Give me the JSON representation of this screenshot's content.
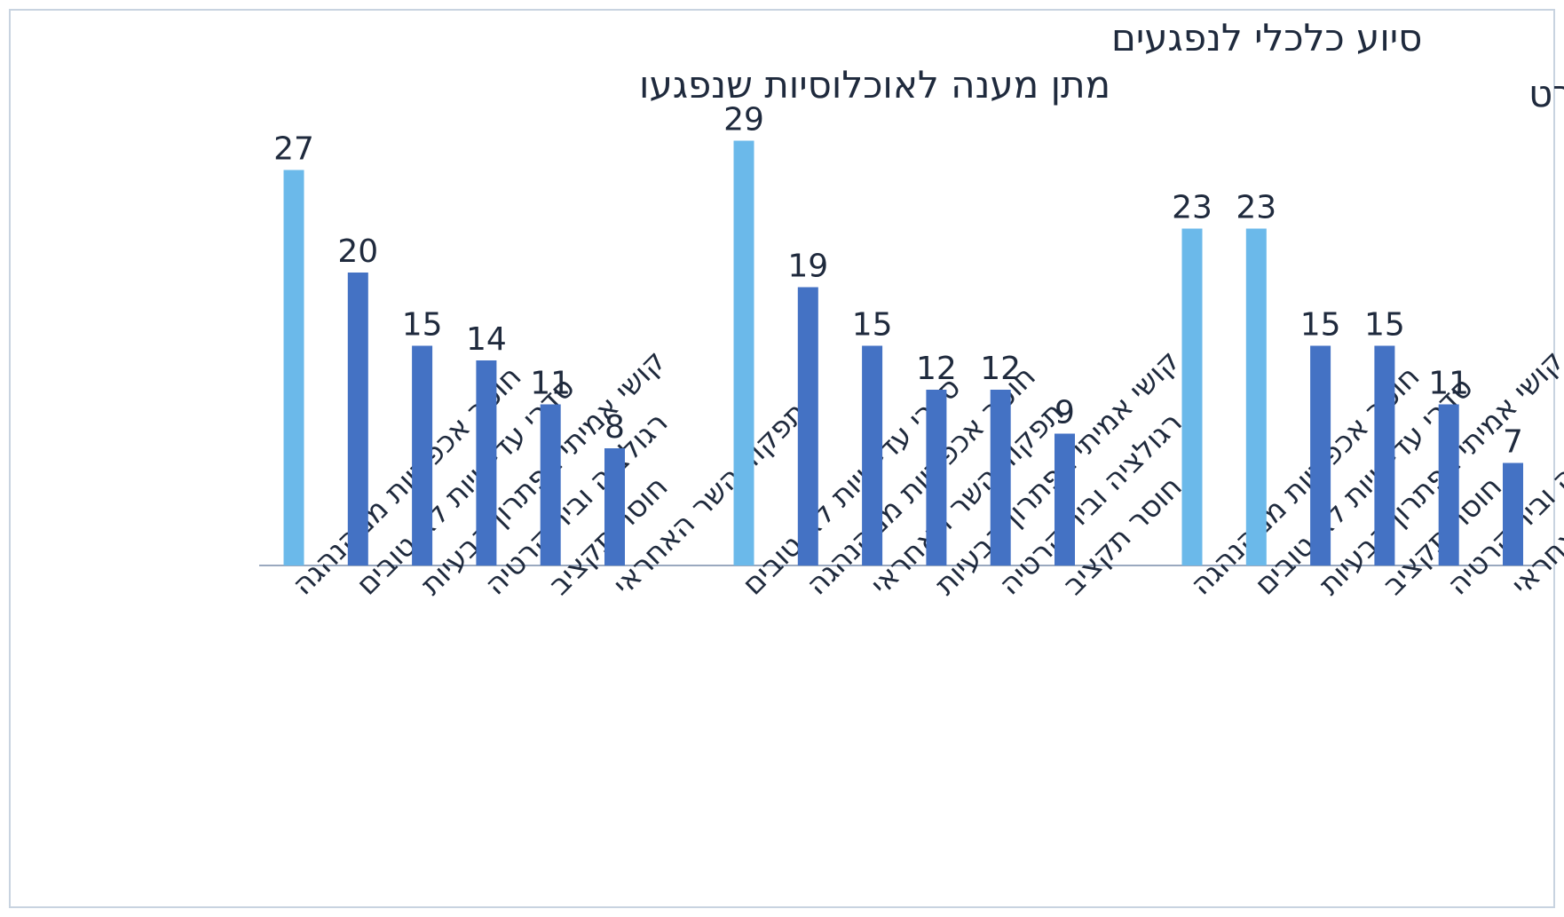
{
  "chart_data": [
    {
      "type": "bar",
      "title": "מתן מענה לאוכלוסיות שנפגעו",
      "categories": [
        "חוסר אכפתיות ממהנהגה",
        "סדרי עדיפויות לא טובים",
        "קושי אמיתי בפתרון הבעיות",
        "רגולציה ובירוקרטיה",
        "חוסר תקציב",
        "תפקוד השר האחראי"
      ],
      "values": [
        27,
        20,
        15,
        14,
        11,
        8
      ],
      "highlight": [
        true,
        false,
        false,
        false,
        false,
        false
      ]
    },
    {
      "type": "bar",
      "title": "סיוע כלכלי לנפגעים",
      "categories": [
        "סדרי עדיפויות לא טובים",
        "חוסר אכפתיות ממהנהגה",
        "תפקוד השר האחראי",
        "קושי אמיתי בפתרון הבעיות",
        "רגולציה ובירוקרטיה",
        "חוסר תקציב"
      ],
      "values": [
        29,
        19,
        15,
        12,
        12,
        9
      ],
      "highlight": [
        true,
        false,
        false,
        false,
        false,
        false
      ]
    },
    {
      "type": "bar",
      "title": "שירותי רווחה לפרט",
      "categories": [
        "חוסר אכפתיות ממהנהגה",
        "סדרי עדיפויות לא טובים",
        "קושי אמיתי בפתרון הבעיות",
        "חוסר תקציב",
        "רגולציה ובירוקרטיה",
        "תפקוד השר האחראי"
      ],
      "values": [
        23,
        23,
        15,
        15,
        11,
        7
      ],
      "highlight": [
        true,
        true,
        false,
        false,
        false,
        false
      ]
    }
  ],
  "colors": {
    "highlight_bar": "#6bb9ea",
    "bar": "#4472c4",
    "axis": "#9aa9bf",
    "text": "#1f2a3d",
    "frame": "#c8d3e0"
  }
}
